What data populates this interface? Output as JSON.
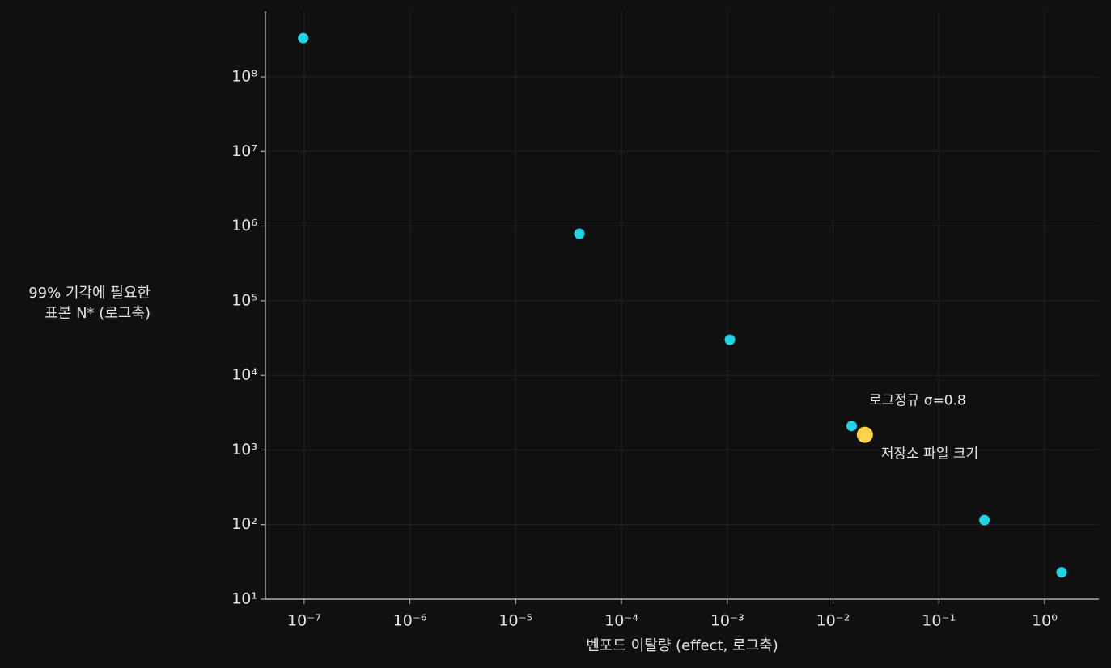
{
  "chart_data": {
    "type": "scatter",
    "xlabel": "벤포드 이탈량 (effect, 로그축)",
    "ylabel": [
      "99% 기각에 필요한",
      "표본 N* (로그축)"
    ],
    "xscale": "log",
    "yscale": "log",
    "xlim": [
      4.3e-08,
      3.26
    ],
    "ylim": [
      10,
      755000000.0
    ],
    "xticks": [
      {
        "value": 1e-07,
        "label": "10⁻⁷"
      },
      {
        "value": 1e-06,
        "label": "10⁻⁶"
      },
      {
        "value": 1e-05,
        "label": "10⁻⁵"
      },
      {
        "value": 0.0001,
        "label": "10⁻⁴"
      },
      {
        "value": 0.001,
        "label": "10⁻³"
      },
      {
        "value": 0.01,
        "label": "10⁻²"
      },
      {
        "value": 0.1,
        "label": "10⁻¹"
      },
      {
        "value": 1,
        "label": "10⁰"
      }
    ],
    "yticks": [
      {
        "value": 10,
        "label": "10¹"
      },
      {
        "value": 100,
        "label": "10²"
      },
      {
        "value": 1000,
        "label": "10³"
      },
      {
        "value": 10000,
        "label": "10⁴"
      },
      {
        "value": 100000,
        "label": "10⁵"
      },
      {
        "value": 1000000,
        "label": "10⁶"
      },
      {
        "value": 10000000,
        "label": "10⁷"
      },
      {
        "value": 100000000,
        "label": "10⁸"
      }
    ],
    "grid": true,
    "series": [
      {
        "color": "#22d3e6",
        "x": [
          9.8e-08,
          4e-05,
          0.00106,
          0.015,
          0.27,
          1.45
        ],
        "values": [
          330000000,
          790000,
          30000,
          2100,
          115,
          23
        ]
      },
      {
        "color": "#fcd34d",
        "x": [
          0.02
        ],
        "values": [
          1600
        ]
      }
    ],
    "annotations": [
      "로그정규 σ=0.8",
      "저장소 파일 크기"
    ]
  }
}
